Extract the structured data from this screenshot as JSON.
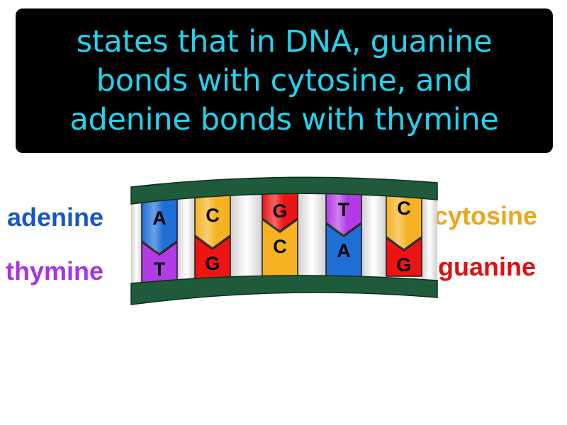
{
  "definition": {
    "line1": "states that in DNA, guanine",
    "line2": "bonds with cytosine, and",
    "line3": "adenine bonds with thymine"
  },
  "labels": {
    "adenine": "adenine",
    "thymine": "thymine",
    "cytosine": "cytosine",
    "guanine": "guanine"
  },
  "colors": {
    "definition_text": "#22d3ee",
    "backbone": "#1f5a3a",
    "adenine": "#1f6fd6",
    "thymine": "#b23be6",
    "cytosine": "#f5b223",
    "guanine": "#ee1414",
    "label_adenine": "#1a55c4",
    "label_thymine": "#a833e0",
    "label_cytosine": "#eea51b",
    "label_guanine": "#e01010"
  },
  "base_pairs": [
    {
      "top": "A",
      "bottom": "T"
    },
    {
      "top": "C",
      "bottom": "G"
    },
    {
      "top": "G",
      "bottom": "C"
    },
    {
      "top": "T",
      "bottom": "A"
    },
    {
      "top": "C",
      "bottom": "G"
    }
  ]
}
